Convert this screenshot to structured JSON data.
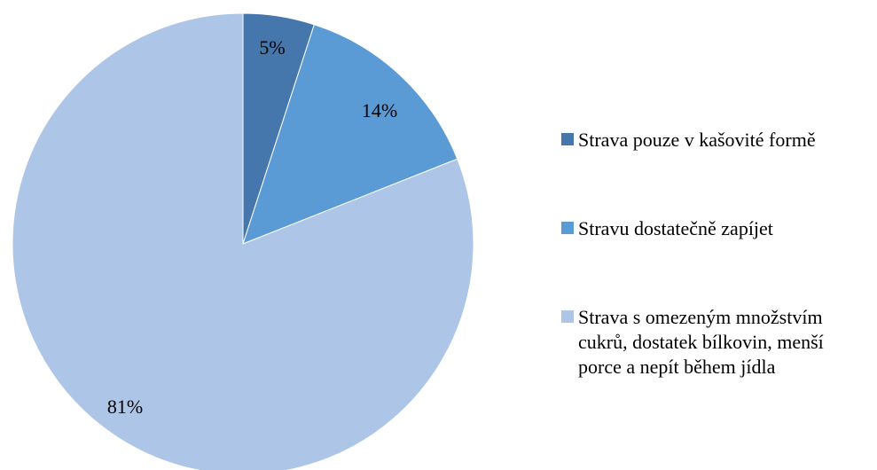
{
  "chart_data": {
    "type": "pie",
    "categories": [
      "Strava pouze v kašovité formě",
      "Stravu dostatečně zapíjet",
      "Strava s omezeným množstvím\ncukrů, dostatek bílkovin, menší\nporce a nepít během jídla"
    ],
    "values": [
      5,
      14,
      81
    ],
    "data_labels": [
      "5%",
      "14%",
      "81%"
    ],
    "colors": [
      "#4677AC",
      "#5B9BD5",
      "#ADC5E6"
    ],
    "legend_position": "right",
    "start_angle": "top",
    "direction": "clockwise"
  }
}
